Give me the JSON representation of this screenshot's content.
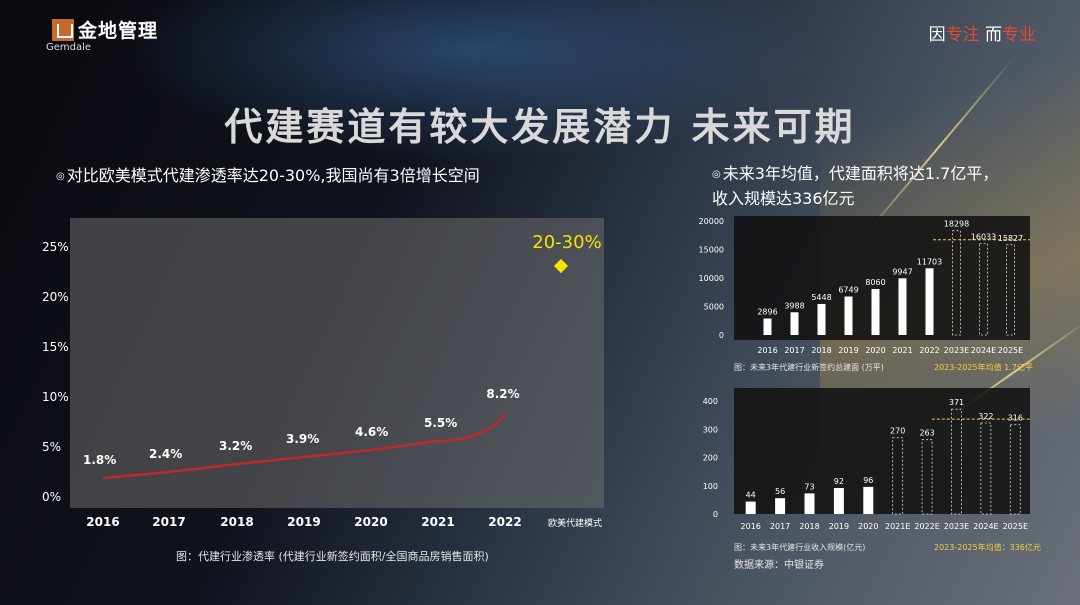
{
  "brand": {
    "name_cn": "金地管理",
    "name_en": "Gemdale"
  },
  "slogan": {
    "prefix": "因",
    "hl1": "专注",
    "mid": " 而",
    "hl2": "专业"
  },
  "title": "代建赛道有较大发展潜力 未来可期",
  "left_bullet": "对比欧美模式代建渗透率达20-30%,我国尚有3倍增长空间",
  "right_bullet": "未来3年均值，代建面积将达1.7亿平，收入规模达336亿元",
  "right_bullet_line1": "未来3年均值，代建面积将达1.7亿平，",
  "right_bullet_line2": "收入规模达336亿元",
  "bullet_mark": "◎",
  "left_caption": "图：代建行业渗透率 (代建行业新签约面积/全国商品房销售面积)",
  "top_caption_left": "图：未来3年代建行业新签约总建面 (万平)",
  "top_caption_right": "2023-2025年均值 1.7亿平",
  "bottom_caption_left": "图：未来3年代建行业收入规模(亿元)",
  "bottom_caption_right": "2023-2025年均值：336亿元",
  "source": "数据来源：中银证券",
  "colors": {
    "line": "#c0282a",
    "highlight": "#f5e400",
    "accent": "#e04a3a",
    "dashed": "#f0d040"
  },
  "chart_data": [
    {
      "type": "line",
      "categories": [
        "2016",
        "2017",
        "2018",
        "2019",
        "2020",
        "2021",
        "2022"
      ],
      "values": [
        1.8,
        2.4,
        3.2,
        3.9,
        4.6,
        5.5,
        8.2
      ],
      "value_labels": [
        "1.8%",
        "2.4%",
        "3.2%",
        "3.9%",
        "4.6%",
        "5.5%",
        "8.2%"
      ],
      "extra_category": "欧美代建模式",
      "extra_point": {
        "value": 25,
        "label": "20-30%"
      },
      "yticks": [
        "0%",
        "5%",
        "10%",
        "15%",
        "20%",
        "25%"
      ],
      "ylim": [
        0,
        27
      ]
    },
    {
      "type": "bar",
      "categories": [
        "2016",
        "2017",
        "2018",
        "2019",
        "2020",
        "2021",
        "2022",
        "2023E",
        "2024E",
        "2025E"
      ],
      "values": [
        2896,
        3988,
        5448,
        6749,
        8060,
        9947,
        11703,
        18298,
        16033,
        15827
      ],
      "value_labels": [
        "2896",
        "3988",
        "5448",
        "6749",
        "8060",
        "9947",
        "11703",
        "18298",
        "16033",
        "15827"
      ],
      "forecast": [
        false,
        false,
        false,
        false,
        false,
        false,
        false,
        true,
        true,
        true
      ],
      "yticks": [
        "0",
        "5000",
        "10000",
        "15000",
        "20000"
      ],
      "ylim": [
        0,
        20000
      ],
      "average": 16719
    },
    {
      "type": "bar",
      "categories": [
        "2016",
        "2017",
        "2018",
        "2019",
        "2020",
        "2021E",
        "2022E",
        "2023E",
        "2024E",
        "2025E"
      ],
      "values": [
        44,
        56,
        73,
        92,
        96,
        270,
        263,
        371,
        322,
        316
      ],
      "value_labels": [
        "44",
        "56",
        "73",
        "92",
        "96",
        "270",
        "263",
        "371",
        "322",
        "316"
      ],
      "forecast": [
        false,
        false,
        false,
        false,
        false,
        true,
        true,
        true,
        true,
        true
      ],
      "yticks": [
        "0",
        "100",
        "200",
        "300",
        "400"
      ],
      "ylim": [
        0,
        400
      ],
      "average": 336
    }
  ]
}
